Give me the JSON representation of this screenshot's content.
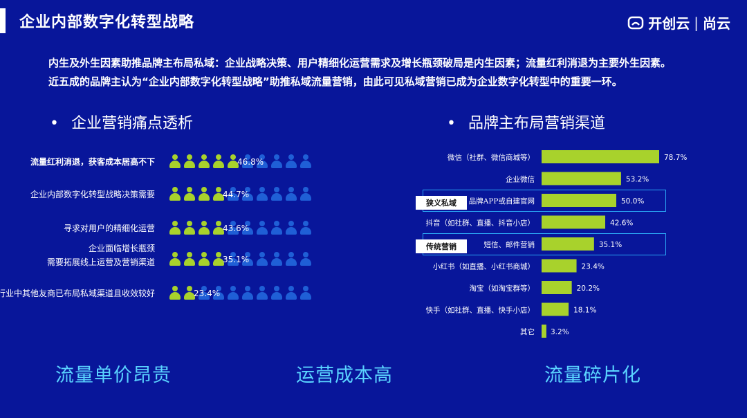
{
  "header": {
    "title": "企业内部数字化转型战略",
    "logo_text": "开创云",
    "logo_sep": "|",
    "logo_text2": "尚云"
  },
  "intro": {
    "line1": "内生及外生因素助推品牌主布局私域：企业战略决策、用户精细化运营需求及增长瓶颈破局是内生因素；流量红利消退为主要外生因素。",
    "line2": "近五成的品牌主认为“企业内部数字化转型战略”助推私域流量营销，由此可见私域营销已成为企业数字化转型中的重要一环。"
  },
  "left_section": {
    "bullet": "•",
    "title": "企业营销痛点透析"
  },
  "right_section": {
    "bullet": "•",
    "title": "品牌主布局营销渠道"
  },
  "pain_points": [
    {
      "label_lines": [
        "流量红利消退，获客成本居高不下"
      ],
      "value": 46.8,
      "pct": "46.8%",
      "bold": true
    },
    {
      "label_lines": [
        "企业内部数字化转型战略决策需要"
      ],
      "value": 44.7,
      "pct": "44.7%",
      "bold": false
    },
    {
      "label_lines": [
        "寻求对用户的精细化运营"
      ],
      "value": 43.6,
      "pct": "43.6%",
      "bold": false
    },
    {
      "label_lines": [
        "企业面临增长瓶颈",
        "需要拓展线上运营及营销渠道"
      ],
      "value": 35.1,
      "pct": "35.1%",
      "bold": false
    },
    {
      "label_lines": [
        "行业中其他友商已布局私域渠道且收效较好"
      ],
      "value": 23.4,
      "pct": "23.4%",
      "bold": false
    }
  ],
  "tags": {
    "narrow_private": "狭义私域",
    "traditional": "传统营销"
  },
  "chart_data": {
    "type": "bar",
    "orientation": "horizontal",
    "categories": [
      "微信（社群、微信商城等）",
      "企业微信",
      "品牌APP或自建官网",
      "抖音（如社群、直播、抖音小店）",
      "短信、邮件营销",
      "小红书（如直播、小红书商城）",
      "淘宝（如淘宝群等）",
      "快手（如社群、直播、快手小店）",
      "其它"
    ],
    "values": [
      78.7,
      53.2,
      50.0,
      42.6,
      35.1,
      23.4,
      20.2,
      18.1,
      3.2
    ],
    "value_labels": [
      "78.7%",
      "53.2%",
      "50.0%",
      "42.6%",
      "35.1%",
      "23.4%",
      "20.2%",
      "18.1%",
      "3.2%"
    ],
    "bar_color": "#a8d22c",
    "xlim": [
      0,
      100
    ],
    "title": "品牌主布局营销渠道"
  },
  "bottom": {
    "item1": "流量单价昂贵",
    "item2": "运营成本高",
    "item3": "流量碎片化"
  },
  "colors": {
    "background": "#08169a",
    "accent_green": "#a8d22c",
    "icon_blue": "#1f5fd6",
    "highlight_cyan": "#5ad3ff",
    "box_border": "#2aa7f5"
  }
}
